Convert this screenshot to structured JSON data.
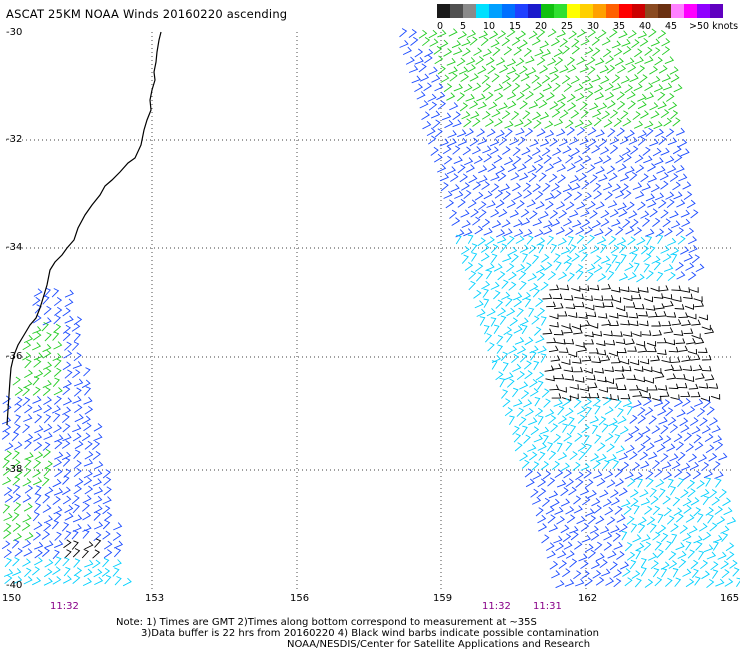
{
  "title": "ASCAT 25KM NOAA Winds 20160220 ascending",
  "legend": {
    "labels": [
      "0",
      "5",
      "10",
      "15",
      "20",
      "25",
      "30",
      "35",
      "40",
      "45",
      ">50 knots"
    ],
    "colors": [
      "#1a1a1a",
      "#505050",
      "#8a8a8a",
      "#00e0ff",
      "#00a0ff",
      "#0070ff",
      "#2040ff",
      "#1a1acc",
      "#10c010",
      "#30e030",
      "#ffff00",
      "#ffd000",
      "#ffa000",
      "#ff6000",
      "#ff0000",
      "#cc0000",
      "#8a4a20",
      "#6a3010",
      "#ff80ff",
      "#ff00ff",
      "#9000ff",
      "#6000c0"
    ]
  },
  "lat_labels": [
    "-30",
    "-32",
    "-34",
    "-36",
    "-38",
    "-40"
  ],
  "lon_labels": [
    "150",
    "153",
    "156",
    "159",
    "162",
    "165"
  ],
  "time_labels": [
    "11:32",
    "11:32",
    "11:31"
  ],
  "notes": {
    "line1": "Note: 1) Times are GMT 2)Times along bottom correspond to measurement at ~35S",
    "line2": "3)Data buffer is 22 hrs from 20160220 4) Black wind barbs indicate possible contamination",
    "line3": "NOAA/NESDIS/Center for Satellite Applications and Research"
  },
  "map": {
    "coastline": "Australia east coast",
    "swaths": [
      "west-coastal",
      "east-ocean"
    ],
    "barb_colors": {
      "low": "#00d0ff",
      "mid": "#1a4aff",
      "high": "#22cc22",
      "contaminated": "#000000"
    }
  }
}
